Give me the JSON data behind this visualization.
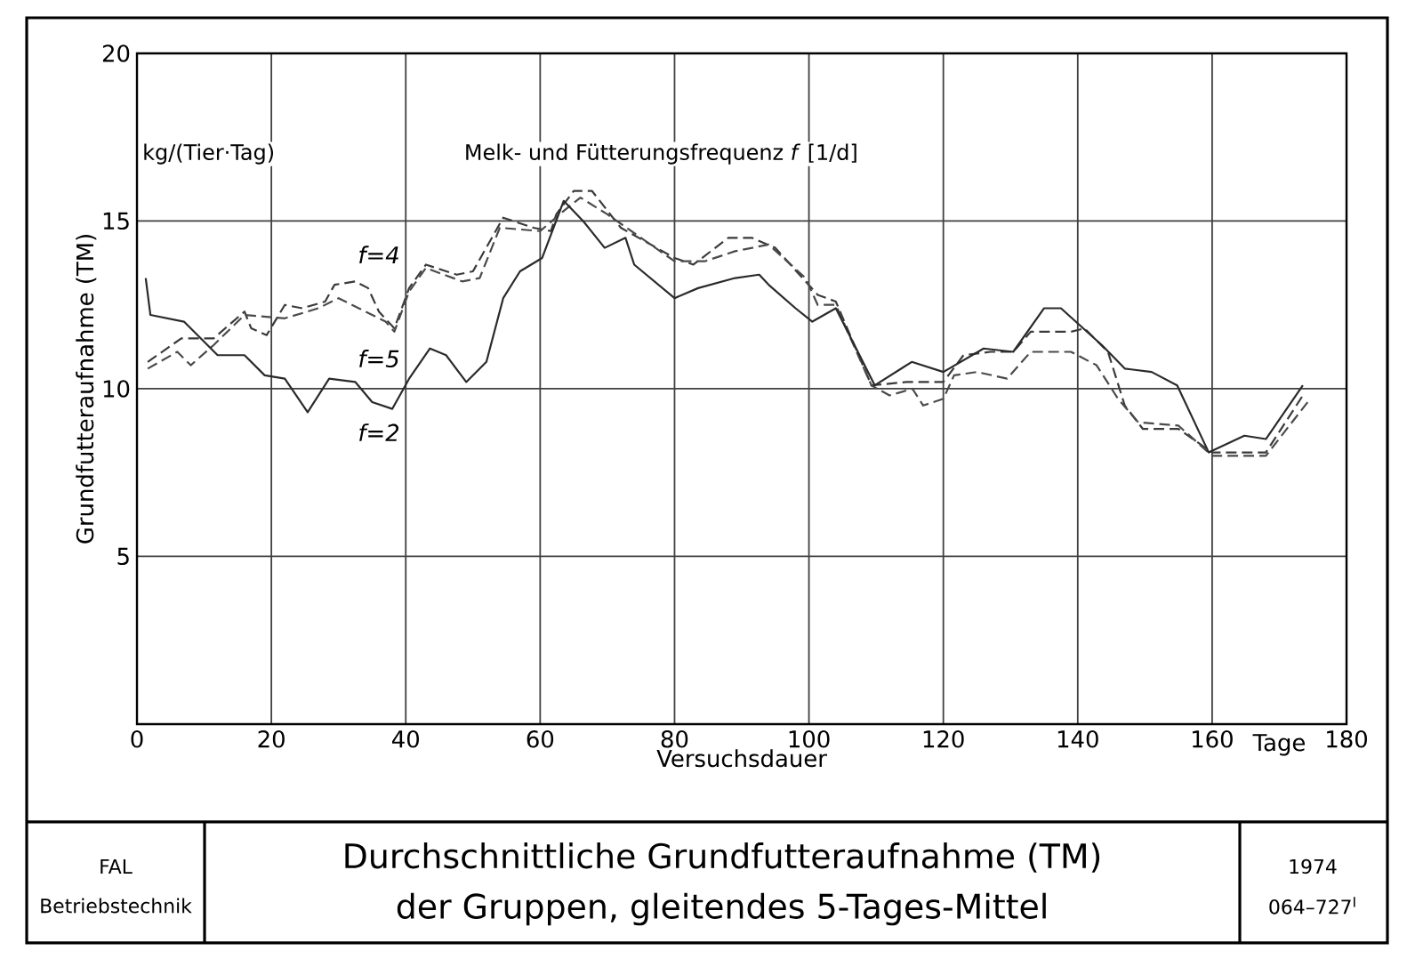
{
  "chart_data": {
    "type": "line",
    "title": "Durchschnittliche Grundfutteraufnahme (TM)",
    "subtitle": "der Gruppen, gleitendes 5-Tages-Mittel",
    "xlabel": "Versuchsdauer",
    "ylabel": "Grundfutteraufnahme (TM)",
    "legend_title": "Melk- und Fütterungsfrequenz *f* [1/d]",
    "annotations": [
      "kg/(Tier·Tag)",
      "Tage",
      "FAL",
      "Betriebstechnik",
      "1974",
      "064–727$^{I}$"
    ],
    "xlim": [
      0,
      180
    ],
    "ylim": [
      0,
      20
    ],
    "xticks": [
      0,
      20,
      40,
      60,
      80,
      100,
      120,
      140,
      160,
      180
    ],
    "yticks": [
      5,
      10,
      15,
      20
    ],
    "grid": true,
    "marker": "none",
    "series": [
      {
        "name": "f=4",
        "color": "#3a3a3a",
        "line_style": "dashed",
        "x": [
          1.6,
          6.6,
          11.4,
          16,
          17,
          19.3,
          22,
          24.6,
          28,
          29.4,
          32.5,
          34.4,
          36,
          38.3,
          40.5,
          43,
          47.6,
          50,
          54.5,
          59,
          61.6,
          62.4,
          65,
          67.7,
          72,
          80,
          82.8,
          88,
          91.5,
          95,
          99.5,
          101.3,
          104,
          109.3,
          114.5,
          120,
          123,
          127,
          130.4,
          133,
          139,
          141,
          144.5,
          147,
          149.7,
          155,
          160,
          168,
          173.5
        ],
        "values": [
          10.8,
          11.5,
          11.5,
          12.3,
          11.8,
          11.6,
          12.5,
          12.4,
          12.6,
          13.1,
          13.2,
          13.0,
          12.3,
          11.8,
          13.0,
          13.7,
          13.4,
          13.5,
          15.1,
          14.8,
          14.7,
          15.2,
          15.9,
          15.9,
          14.8,
          13.9,
          13.7,
          14.5,
          14.5,
          14.2,
          13.2,
          12.8,
          12.6,
          10.1,
          10.2,
          10.2,
          11.0,
          11.1,
          11.1,
          11.7,
          11.7,
          11.8,
          11.1,
          9.5,
          8.8,
          8.8,
          8.1,
          8.1,
          9.8
        ]
      },
      {
        "name": "f=5",
        "color": "#4a4a4a",
        "line_style": "dashed",
        "x": [
          1.6,
          6,
          8,
          11.4,
          16,
          22,
          27,
          30,
          33,
          37,
          38.3,
          40.5,
          43,
          48.4,
          51,
          54,
          60,
          63.5,
          66,
          70,
          80,
          84.5,
          89,
          94,
          99.5,
          101.3,
          104,
          109.3,
          112,
          115.4,
          117,
          120,
          121.6,
          125,
          129.5,
          133,
          139,
          142.8,
          146,
          149,
          155,
          160,
          168,
          174.6
        ],
        "values": [
          10.6,
          11.1,
          10.7,
          11.3,
          12.2,
          12.1,
          12.4,
          12.7,
          12.4,
          12.0,
          11.7,
          12.9,
          13.6,
          13.2,
          13.3,
          14.8,
          14.7,
          15.3,
          15.7,
          15.2,
          13.8,
          13.8,
          14.1,
          14.3,
          13.3,
          12.5,
          12.5,
          10.1,
          9.8,
          10.0,
          9.5,
          9.7,
          10.4,
          10.5,
          10.3,
          11.1,
          11.1,
          10.7,
          9.7,
          9.0,
          8.9,
          8.0,
          8.0,
          9.7
        ]
      },
      {
        "name": "f=2",
        "color": "#2a2a2a",
        "line_style": "solid",
        "x": [
          1.3,
          2,
          7,
          12,
          16,
          19,
          22,
          25.4,
          28.6,
          32.5,
          35,
          38,
          40.5,
          43.6,
          46,
          49,
          52,
          54.5,
          57,
          60.3,
          63.5,
          66.4,
          69.6,
          72.7,
          74,
          80,
          83.5,
          89,
          92.6,
          94,
          98,
          100.5,
          104,
          109.8,
          115.3,
          120,
          126,
          130.4,
          135,
          137.5,
          143.6,
          147,
          151,
          154.8,
          159.5,
          164.8,
          168,
          173.5
        ],
        "values": [
          13.3,
          12.2,
          12.0,
          11.0,
          11.0,
          10.4,
          10.3,
          9.3,
          10.3,
          10.2,
          9.6,
          9.4,
          10.3,
          11.2,
          11.0,
          10.2,
          10.8,
          12.7,
          13.5,
          13.9,
          15.6,
          15.0,
          14.2,
          14.5,
          13.7,
          12.7,
          13.0,
          13.3,
          13.4,
          13.1,
          12.4,
          12.0,
          12.4,
          10.1,
          10.8,
          10.5,
          11.2,
          11.1,
          12.4,
          12.4,
          11.3,
          10.6,
          10.5,
          10.1,
          8.1,
          8.6,
          8.5,
          10.1
        ]
      }
    ]
  }
}
